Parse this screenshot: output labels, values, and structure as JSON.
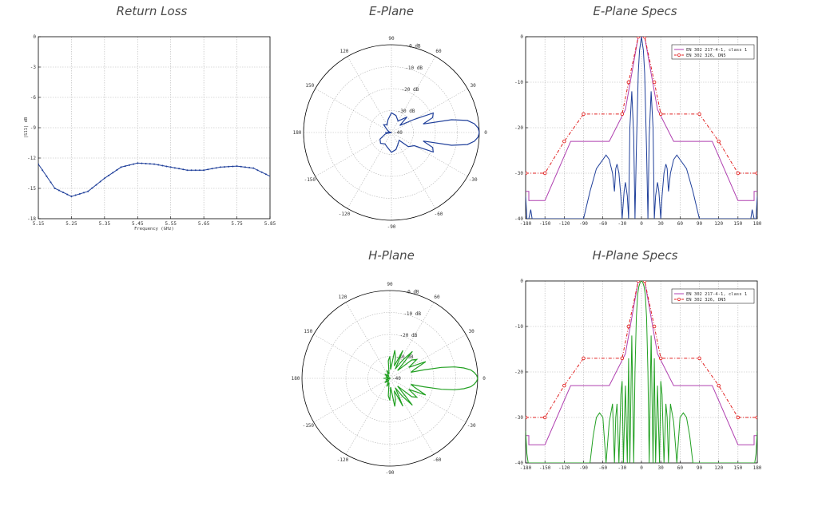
{
  "titles": {
    "return_loss": "Return Loss",
    "e_plane": "E-Plane",
    "e_plane_specs": "E-Plane Specs",
    "h_plane": "H-Plane",
    "h_plane_specs": "H-Plane Specs"
  },
  "colors": {
    "blue": "#1f3f9a",
    "green": "#22a022",
    "magenta": "#b040b0",
    "red": "#e02020",
    "grid": "#b5b5b5"
  },
  "chart_data": [
    {
      "id": "return_loss",
      "type": "line",
      "title": "Return Loss",
      "xlabel": "Frequency (GHz)",
      "ylabel": "|S11| dB",
      "xlim": [
        5.15,
        5.85
      ],
      "ylim": [
        -18,
        0
      ],
      "xticks": [
        "5.15",
        "5.25",
        "5.35",
        "5.45",
        "5.55",
        "5.65",
        "5.75",
        "5.85"
      ],
      "yticks": [
        "0",
        "-3",
        "-6",
        "-9",
        "-12",
        "-15",
        "-18"
      ],
      "grid": true,
      "series": [
        {
          "color": "blue",
          "marker": "dot",
          "x": [
            5.15,
            5.2,
            5.25,
            5.3,
            5.35,
            5.4,
            5.45,
            5.5,
            5.55,
            5.6,
            5.65,
            5.7,
            5.75,
            5.8,
            5.85
          ],
          "y": [
            -12.6,
            -15.0,
            -15.8,
            -15.3,
            -14.0,
            -12.9,
            -12.5,
            -12.6,
            -12.9,
            -13.2,
            -13.2,
            -12.9,
            -12.8,
            -13.0,
            -13.8
          ]
        }
      ]
    },
    {
      "id": "e_plane",
      "type": "polar",
      "title": "E-Plane",
      "rlim": [
        -40,
        0
      ],
      "rticks": [
        "0 dB",
        "-10 dB",
        "-20 dB",
        "-30 dB",
        "-40"
      ],
      "angle_ticks": [
        "0",
        "30",
        "60",
        "90",
        "120",
        "150",
        "180",
        "-150",
        "-120",
        "-90",
        "-60",
        "-30"
      ],
      "color": "blue",
      "theta": [
        0,
        3,
        6,
        9,
        12,
        15,
        20,
        25,
        30,
        40,
        45,
        60,
        75,
        90,
        105,
        120,
        135,
        150,
        165,
        170,
        180,
        190,
        195,
        210,
        225,
        240,
        255,
        270,
        285,
        300,
        315,
        320,
        330,
        335,
        340,
        345,
        348,
        351,
        354,
        357
      ],
      "r": [
        0,
        -0.5,
        -2,
        -5,
        -12,
        -25,
        -20,
        -19,
        -28,
        -35,
        -30,
        -34,
        -32,
        -31,
        -34,
        -36,
        -35,
        -38,
        -39,
        -39,
        -40,
        -38,
        -37,
        -34,
        -33,
        -34,
        -33,
        -31,
        -32,
        -34,
        -35,
        -30,
        -28,
        -19,
        -20,
        -25,
        -12,
        -5,
        -2,
        -0.5
      ]
    },
    {
      "id": "e_plane_specs",
      "type": "line",
      "title": "E-Plane Specs",
      "xlim": [
        -180,
        180
      ],
      "ylim": [
        -40,
        0
      ],
      "xticks": [
        "-180",
        "-150",
        "-120",
        "-90",
        "-60",
        "-30",
        "0",
        "30",
        "60",
        "90",
        "120",
        "150",
        "180"
      ],
      "yticks": [
        "0",
        "-10",
        "-20",
        "-30",
        "-40"
      ],
      "grid": true,
      "legend": [
        "EN 302 217-4-1, class 1",
        "EN 302 326, DN5"
      ],
      "legend_position": "top-right",
      "series": [
        {
          "name": "EN 302 217-4-1, class 1",
          "color": "magenta",
          "x": [
            -180,
            -175,
            -175,
            -150,
            -110,
            -50,
            -25,
            -5,
            5,
            25,
            50,
            110,
            150,
            175,
            175,
            180
          ],
          "y": [
            -34,
            -34,
            -36,
            -36,
            -23,
            -23,
            -16,
            0,
            0,
            -16,
            -23,
            -23,
            -36,
            -36,
            -34,
            -34
          ]
        },
        {
          "name": "EN 302 326, DN5",
          "color": "red",
          "marker": "circle",
          "x": [
            -180,
            -150,
            -120,
            -90,
            -30,
            -20,
            -5,
            5,
            20,
            30,
            90,
            120,
            150,
            180
          ],
          "y": [
            -30,
            -30,
            -23,
            -17,
            -17,
            -10,
            0,
            0,
            -10,
            -17,
            -17,
            -23,
            -30,
            -30
          ]
        },
        {
          "color": "blue",
          "x": [
            -180,
            -178,
            -175,
            -172,
            -170,
            -168,
            -160,
            -150,
            -140,
            -130,
            -120,
            -110,
            -100,
            -90,
            -80,
            -70,
            -60,
            -55,
            -50,
            -45,
            -42,
            -40,
            -38,
            -35,
            -32,
            -30,
            -27,
            -25,
            -22,
            -20,
            -18,
            -15,
            -12,
            -10,
            -8,
            -5,
            -3,
            0,
            3,
            5,
            8,
            10,
            12,
            15,
            18,
            20,
            22,
            25,
            27,
            30,
            32,
            35,
            38,
            40,
            42,
            45,
            50,
            55,
            60,
            70,
            80,
            90,
            100,
            110,
            120,
            130,
            140,
            150,
            160,
            168,
            170,
            172,
            175,
            178,
            180
          ],
          "y": [
            -35,
            -40,
            -40,
            -38,
            -40,
            -40,
            -40,
            -40,
            -40,
            -40,
            -40,
            -40,
            -40,
            -40,
            -34,
            -29,
            -27,
            -26,
            -27,
            -30,
            -34,
            -29,
            -28,
            -30,
            -35,
            -40,
            -34,
            -32,
            -35,
            -40,
            -20,
            -12,
            -22,
            -40,
            -25,
            -8,
            -3,
            0,
            -3,
            -8,
            -25,
            -40,
            -22,
            -12,
            -20,
            -40,
            -35,
            -32,
            -34,
            -40,
            -35,
            -30,
            -28,
            -29,
            -34,
            -30,
            -27,
            -26,
            -27,
            -29,
            -34,
            -40,
            -40,
            -40,
            -40,
            -40,
            -40,
            -40,
            -40,
            -40,
            -40,
            -38,
            -40,
            -40,
            -35
          ]
        }
      ]
    },
    {
      "id": "h_plane",
      "type": "polar",
      "title": "H-Plane",
      "rlim": [
        -40,
        0
      ],
      "rticks": [
        "0 dB",
        "-10 dB",
        "-20 dB",
        "-30 dB",
        "-40"
      ],
      "angle_ticks": [
        "0",
        "30",
        "60",
        "90",
        "120",
        "150",
        "180",
        "-150",
        "-120",
        "-90",
        "-60",
        "-30"
      ],
      "color": "green",
      "theta": [
        0,
        2,
        4,
        6,
        8,
        10,
        12,
        14,
        16,
        20,
        25,
        30,
        35,
        40,
        45,
        50,
        55,
        60,
        65,
        70,
        75,
        80,
        85,
        90,
        95,
        100,
        110,
        120,
        130,
        140,
        150,
        160,
        170,
        180,
        190,
        200,
        210,
        220,
        230,
        240,
        250,
        260,
        265,
        270,
        275,
        280,
        285,
        290,
        295,
        300,
        305,
        310,
        315,
        320,
        325,
        330,
        335,
        340,
        344,
        346,
        348,
        350,
        352,
        354,
        356,
        358
      ],
      "r": [
        0,
        -0.5,
        -1.5,
        -3,
        -6,
        -10,
        -16,
        -24,
        -30,
        -28,
        -22,
        -30,
        -25,
        -27,
        -35,
        -24,
        -30,
        -35,
        -26,
        -34,
        -30,
        -27,
        -36,
        -30,
        -32,
        -38,
        -36,
        -39,
        -38,
        -37,
        -39,
        -38,
        -40,
        -40,
        -40,
        -38,
        -39,
        -37,
        -38,
        -39,
        -36,
        -38,
        -32,
        -30,
        -36,
        -27,
        -30,
        -34,
        -26,
        -35,
        -30,
        -24,
        -35,
        -27,
        -25,
        -30,
        -22,
        -28,
        -30,
        -24,
        -16,
        -10,
        -6,
        -3,
        -1.5,
        -0.5
      ]
    },
    {
      "id": "h_plane_specs",
      "type": "line",
      "title": "H-Plane Specs",
      "xlim": [
        -180,
        180
      ],
      "ylim": [
        -40,
        0
      ],
      "xticks": [
        "-180",
        "-150",
        "-120",
        "-90",
        "-60",
        "-30",
        "0",
        "30",
        "60",
        "90",
        "120",
        "150",
        "180"
      ],
      "yticks": [
        "0",
        "-10",
        "-20",
        "-30",
        "-40"
      ],
      "grid": true,
      "legend": [
        "EN 302 217-4-1, class 1",
        "EN 302 326, DN5"
      ],
      "legend_position": "top-right",
      "series": [
        {
          "name": "EN 302 217-4-1, class 1",
          "color": "magenta",
          "x": [
            -180,
            -175,
            -175,
            -150,
            -110,
            -50,
            -25,
            -5,
            5,
            25,
            50,
            110,
            150,
            175,
            175,
            180
          ],
          "y": [
            -34,
            -34,
            -36,
            -36,
            -23,
            -23,
            -16,
            0,
            0,
            -16,
            -23,
            -23,
            -36,
            -36,
            -34,
            -34
          ]
        },
        {
          "name": "EN 302 326, DN5",
          "color": "red",
          "marker": "circle",
          "x": [
            -180,
            -150,
            -120,
            -90,
            -30,
            -20,
            -5,
            5,
            20,
            30,
            90,
            120,
            150,
            180
          ],
          "y": [
            -30,
            -30,
            -23,
            -17,
            -17,
            -10,
            0,
            0,
            -10,
            -17,
            -17,
            -23,
            -30,
            -30
          ]
        },
        {
          "color": "green",
          "x": [
            -180,
            -178,
            -176,
            -174,
            -172,
            -170,
            -160,
            -150,
            -140,
            -130,
            -120,
            -110,
            -100,
            -90,
            -80,
            -75,
            -70,
            -65,
            -60,
            -55,
            -50,
            -45,
            -42,
            -40,
            -38,
            -35,
            -32,
            -30,
            -28,
            -25,
            -22,
            -20,
            -18,
            -15,
            -12,
            -10,
            -8,
            -6,
            -4,
            -2,
            0,
            2,
            4,
            6,
            8,
            10,
            12,
            15,
            18,
            20,
            22,
            25,
            28,
            30,
            32,
            35,
            38,
            40,
            42,
            45,
            50,
            55,
            60,
            65,
            70,
            75,
            80,
            90,
            100,
            110,
            120,
            130,
            140,
            150,
            160,
            170,
            172,
            174,
            176,
            178,
            180
          ],
          "y": [
            -33,
            -38,
            -40,
            -40,
            -40,
            -40,
            -40,
            -40,
            -40,
            -40,
            -40,
            -40,
            -40,
            -40,
            -40,
            -34,
            -30,
            -29,
            -30,
            -40,
            -31,
            -27,
            -40,
            -30,
            -27,
            -40,
            -25,
            -22,
            -40,
            -23,
            -40,
            -17,
            -40,
            -12,
            -40,
            -20,
            -8,
            -3,
            -1.2,
            -0.3,
            0,
            -0.3,
            -1.2,
            -3,
            -8,
            -20,
            -40,
            -12,
            -40,
            -17,
            -40,
            -23,
            -40,
            -22,
            -25,
            -40,
            -27,
            -30,
            -40,
            -27,
            -31,
            -40,
            -30,
            -29,
            -30,
            -34,
            -40,
            -40,
            -40,
            -40,
            -40,
            -40,
            -40,
            -40,
            -40,
            -40,
            -40,
            -40,
            -40,
            -38,
            -33
          ]
        }
      ]
    }
  ]
}
